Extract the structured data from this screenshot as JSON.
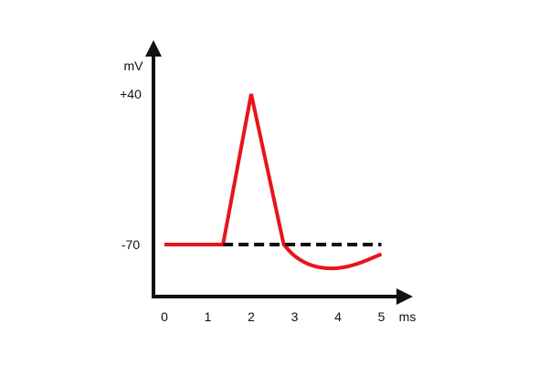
{
  "chart_data": {
    "type": "line",
    "title": "",
    "xlabel": "ms",
    "ylabel": "mV",
    "xlim": [
      0,
      5.3
    ],
    "ylim": [
      -110,
      60
    ],
    "x_ticks": [
      "0",
      "1",
      "2",
      "3",
      "4",
      "5"
    ],
    "y_ticks": [
      {
        "label": "+40",
        "value": 40
      },
      {
        "label": "-70",
        "value": -70
      }
    ],
    "series": [
      {
        "values": [
          {
            "x": 0,
            "y": -70
          },
          {
            "x": 1.35,
            "y": -70
          },
          {
            "x": 2.0,
            "y": 40
          },
          {
            "x": 2.75,
            "y": -70
          },
          {
            "x": 3.0,
            "y": -79
          },
          {
            "x": 3.4,
            "y": -86
          },
          {
            "x": 3.9,
            "y": -88
          },
          {
            "x": 4.4,
            "y": -85
          },
          {
            "x": 5.0,
            "y": -77
          }
        ],
        "color": "#e8141b",
        "style": "solid"
      },
      {
        "values": [
          {
            "x": 1.35,
            "y": -70
          },
          {
            "x": 5.0,
            "y": -70
          }
        ],
        "color": "#111111",
        "style": "dashed"
      }
    ],
    "grid": false,
    "legend": "none"
  }
}
